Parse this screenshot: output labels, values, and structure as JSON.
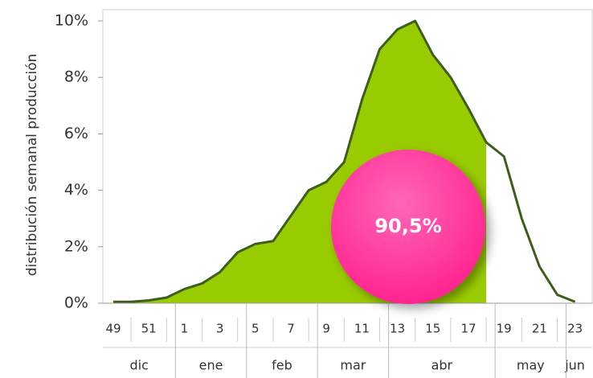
{
  "chart_data": {
    "type": "area",
    "y_label": "distribución semanal producción",
    "categories": [
      "49",
      null,
      "51",
      null,
      "1",
      null,
      "3",
      null,
      "5",
      null,
      "7",
      null,
      "9",
      null,
      "11",
      null,
      "13",
      null,
      "15",
      null,
      "17",
      null,
      "19",
      null,
      "21",
      null,
      "23"
    ],
    "values": [
      0.05,
      0.05,
      0.1,
      0.2,
      0.5,
      0.7,
      1.1,
      1.8,
      2.1,
      2.2,
      3.1,
      4.0,
      4.3,
      5.0,
      7.2,
      9.0,
      9.7,
      10.0,
      8.8,
      8.0,
      6.9,
      5.7,
      5.2,
      3.0,
      1.3,
      0.3,
      0.05
    ],
    "color": "#3d5e1c",
    "fill_color": "#99cc00",
    "fill_last_index": 21,
    "ylim": [
      0,
      10.4
    ],
    "yticks": [
      {
        "value": 0,
        "label": "0%"
      },
      {
        "value": 2,
        "label": "2%"
      },
      {
        "value": 4,
        "label": "4%"
      },
      {
        "value": 6,
        "label": "6%"
      },
      {
        "value": 8,
        "label": "8%"
      },
      {
        "value": 10,
        "label": "10%"
      }
    ],
    "month_groups": [
      {
        "label": "dic",
        "first": 0,
        "last": 3
      },
      {
        "label": "ene",
        "first": 4,
        "last": 7
      },
      {
        "label": "feb",
        "first": 8,
        "last": 11
      },
      {
        "label": "mar",
        "first": 12,
        "last": 15
      },
      {
        "label": "abr",
        "first": 16,
        "last": 21
      },
      {
        "label": "may",
        "first": 22,
        "last": 25
      },
      {
        "label": "jun",
        "first": 26,
        "last": 26
      }
    ],
    "annotation": {
      "text": "90,5%",
      "color": "#ff2f96"
    }
  }
}
